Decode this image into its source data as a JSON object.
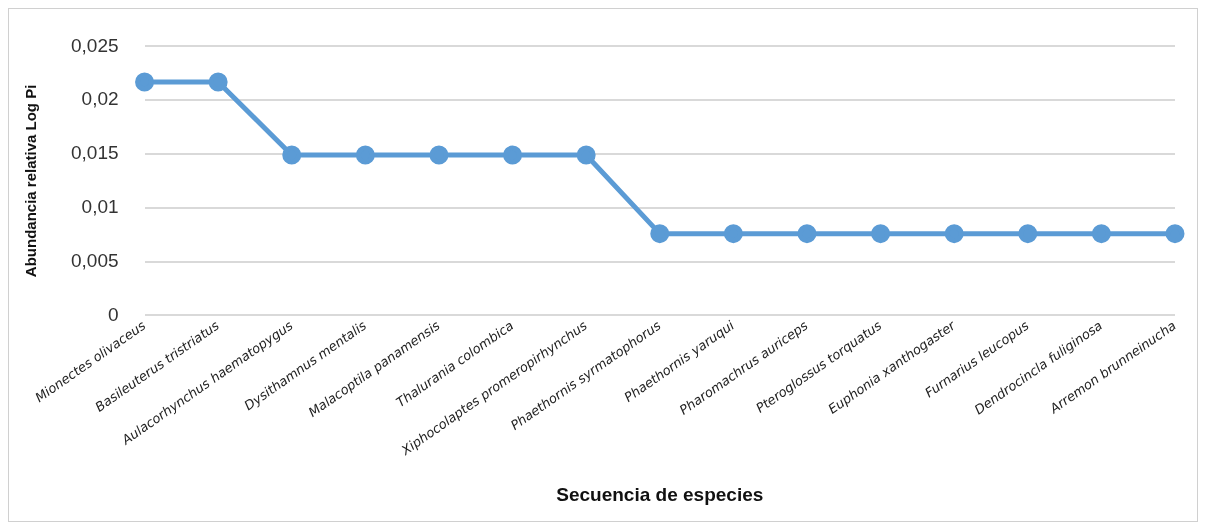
{
  "chart_data": {
    "type": "line",
    "xlabel": "Secuencia de especies",
    "ylabel": "Abundancia relativa Log Pi",
    "categories": [
      "Mionectes olivaceus",
      "Basileuterus tristriatus",
      "Aulacorhynchus haematopygus",
      "Dysithamnus mentalis",
      "Malacoptila panamensis",
      "Thalurania colombica",
      "Xiphocolaptes promeropirhynchus",
      "Phaethornis syrmatophorus",
      "Phaethornis yaruqui",
      "Pharomachrus auriceps",
      "Pteroglossus torquatus",
      "Euphonia xanthogaster",
      "Furnarius leucopus",
      "Dendrocincla fuliginosa",
      "Arremon brunneinucha"
    ],
    "series": [
      {
        "color": "#5b9bd5",
        "values": [
          0.0217,
          0.0217,
          0.0149,
          0.0149,
          0.0149,
          0.0149,
          0.0149,
          0.0076,
          0.0076,
          0.0076,
          0.0076,
          0.0076,
          0.0076,
          0.0076,
          0.0076
        ]
      }
    ],
    "ylim": [
      0,
      0.025
    ],
    "yticks": [
      {
        "value": 0,
        "label": "0"
      },
      {
        "value": 0.005,
        "label": "0,005"
      },
      {
        "value": 0.01,
        "label": "0,01"
      },
      {
        "value": 0.015,
        "label": "0,015"
      },
      {
        "value": 0.02,
        "label": "0,02"
      },
      {
        "value": 0.025,
        "label": "0,025"
      }
    ],
    "grid": "y",
    "legend": false,
    "marker": "circle",
    "line_style": "solid"
  }
}
